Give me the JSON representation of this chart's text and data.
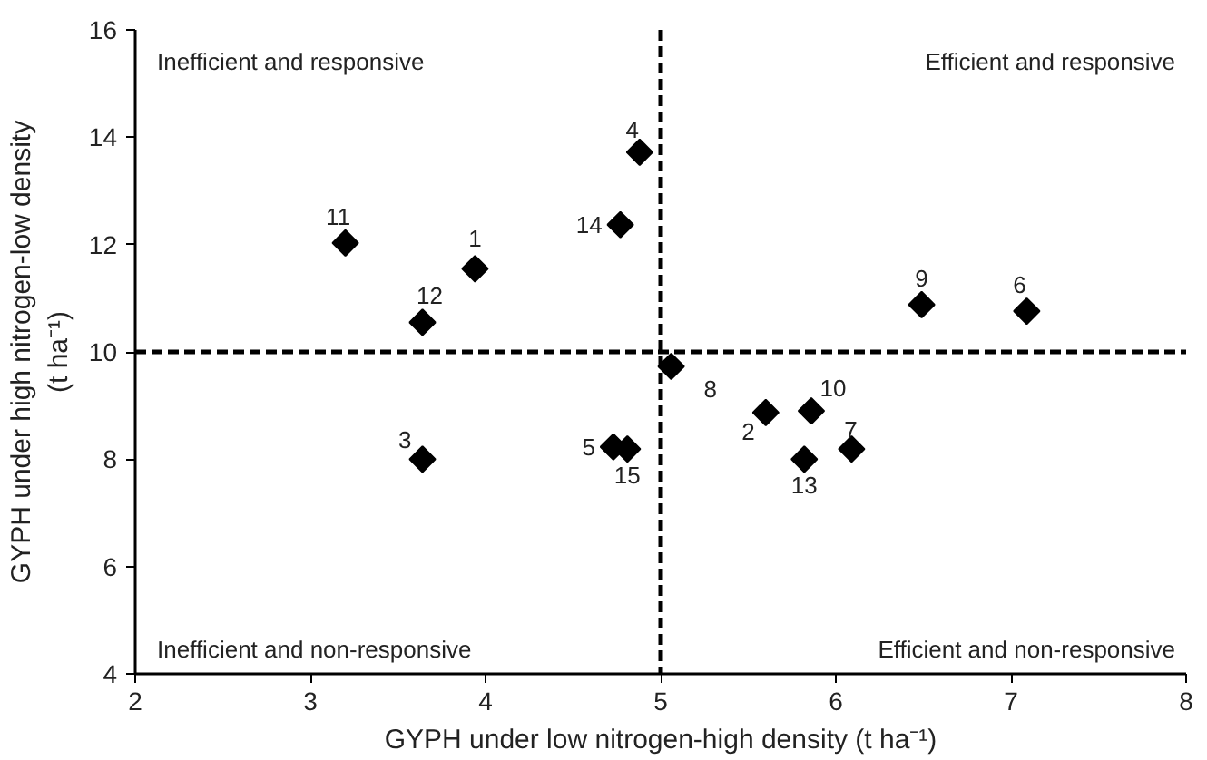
{
  "chart_data": {
    "type": "scatter",
    "xlabel": "GYPH under low nitrogen-high density (t ha⁻¹)",
    "ylabel": "GYPH under high nitrogen-low density\n(t ha⁻¹)",
    "x": [
      3.94,
      5.6,
      3.64,
      4.88,
      4.73,
      7.09,
      6.09,
      5.06,
      6.49,
      5.86,
      3.2,
      3.64,
      5.82,
      4.77,
      4.81
    ],
    "series": [
      {
        "color": "#000000",
        "values": [
          11.55,
          8.87,
          8.0,
          13.72,
          8.23,
          10.76,
          8.19,
          9.73,
          10.88,
          8.9,
          12.03,
          10.55,
          8.0,
          12.37,
          8.19
        ]
      }
    ],
    "marker": "diamond",
    "xlim": [
      2,
      8
    ],
    "xticks": [
      2,
      3,
      4,
      5,
      6,
      7,
      8
    ],
    "ylim": [
      4,
      16
    ],
    "yticks": [
      4,
      6,
      8,
      10,
      12,
      14,
      16
    ],
    "grid": false,
    "ref_lines": [
      {
        "axis": "x",
        "value": 5,
        "line_style": "dashed"
      },
      {
        "axis": "y",
        "value": 10,
        "line_style": "dashed"
      }
    ],
    "annotations": [
      {
        "text": "1",
        "x": 3.94,
        "y": 11.55
      },
      {
        "text": "2",
        "x": 5.6,
        "y": 8.87
      },
      {
        "text": "3",
        "x": 3.64,
        "y": 8.0
      },
      {
        "text": "4",
        "x": 4.88,
        "y": 13.72
      },
      {
        "text": "5",
        "x": 4.73,
        "y": 8.23
      },
      {
        "text": "6",
        "x": 7.09,
        "y": 10.76
      },
      {
        "text": "7",
        "x": 6.09,
        "y": 8.19
      },
      {
        "text": "8",
        "x": 5.06,
        "y": 9.73
      },
      {
        "text": "9",
        "x": 6.49,
        "y": 10.88
      },
      {
        "text": "10",
        "x": 5.86,
        "y": 8.9
      },
      {
        "text": "11",
        "x": 3.2,
        "y": 12.03
      },
      {
        "text": "12",
        "x": 3.64,
        "y": 10.55
      },
      {
        "text": "13",
        "x": 5.82,
        "y": 8.0
      },
      {
        "text": "14",
        "x": 4.77,
        "y": 12.37
      },
      {
        "text": "15",
        "x": 4.81,
        "y": 8.19
      },
      "Inefficient and responsive",
      "Efficient and responsive",
      "Inefficient and non-responsive",
      "Efficient and non-responsive"
    ]
  }
}
